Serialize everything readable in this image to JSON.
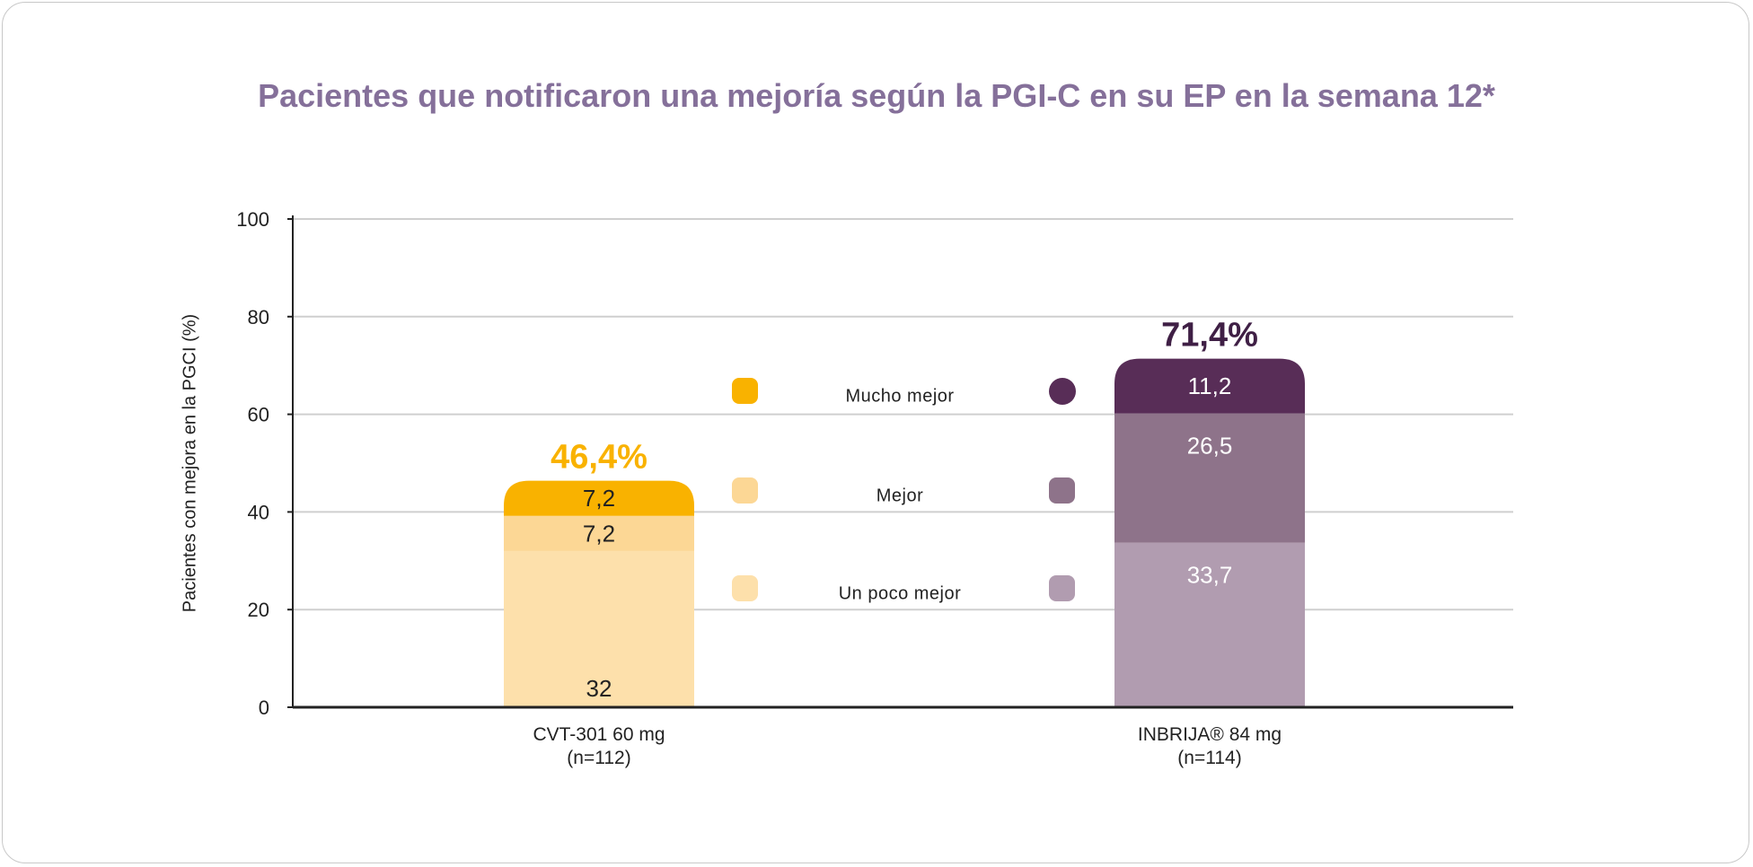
{
  "chart_data": {
    "type": "bar",
    "stacked": true,
    "title": "Pacientes que notificaron una mejoría según la PGI-C en su EP en la semana 12*",
    "ylabel": "Pacientes con mejora en la PGCI (%)",
    "xlabel": "",
    "ylim": [
      0,
      100
    ],
    "yticks": [
      0,
      20,
      40,
      60,
      80,
      100
    ],
    "grid": true,
    "legend_placement": "center",
    "categories": [
      {
        "name": "CVT-301 60 mg",
        "n": "(n=112)",
        "total_label": "46,4%",
        "total_color": "#f9b200"
      },
      {
        "name": "INBRIJA® 84 mg",
        "n": "(n=114)",
        "total_label": "71,4%",
        "total_color": "#3f1f45"
      }
    ],
    "series": [
      {
        "name": "Un poco mejor",
        "values": [
          32,
          33.7
        ],
        "labels": [
          "32",
          "33,7"
        ],
        "colors": [
          "#fde0ab",
          "#b19cb0"
        ]
      },
      {
        "name": "Mejor",
        "values": [
          7.2,
          26.5
        ],
        "labels": [
          "7,2",
          "26,5"
        ],
        "colors": [
          "#fcd795",
          "#8e738a"
        ]
      },
      {
        "name": "Mucho mejor",
        "values": [
          7.2,
          11.2
        ],
        "labels": [
          "7,2",
          "11,2"
        ],
        "colors": [
          "#f9b200",
          "#582d57"
        ]
      }
    ]
  }
}
